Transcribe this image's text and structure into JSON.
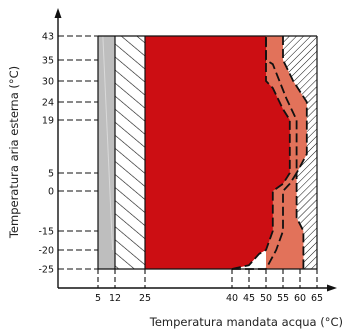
{
  "chart_data": {
    "type": "area",
    "title": "",
    "xlabel": "Temperatura mandata acqua (°C)",
    "ylabel": "Temperatura aria esterna (°C)",
    "x_ticks": [
      5,
      12,
      25,
      40,
      45,
      50,
      55,
      60,
      65
    ],
    "y_ticks": [
      43,
      35,
      30,
      24,
      19,
      5,
      0,
      -15,
      -20,
      -25
    ],
    "x_range": [
      0,
      67
    ],
    "y_range": [
      -29,
      47
    ],
    "grid": false,
    "legend": "none",
    "regions": [
      {
        "fill": "gray",
        "color": "#bebebe",
        "points": [
          [
            5,
            -25
          ],
          [
            12,
            -25
          ],
          [
            12,
            43
          ],
          [
            5,
            43
          ]
        ]
      },
      {
        "fill": "diagonal-hatch",
        "color": "#ffffff",
        "points": [
          [
            12,
            -25
          ],
          [
            25,
            -25
          ],
          [
            25,
            43
          ],
          [
            12,
            43
          ]
        ]
      },
      {
        "fill": "dense-hatch",
        "color": "#ffffff",
        "points": [
          [
            50,
            -25
          ],
          [
            65,
            -25
          ],
          [
            65,
            43
          ],
          [
            50,
            43
          ]
        ]
      },
      {
        "fill": "orange",
        "color": "#e2725a",
        "points": [
          [
            40,
            -25
          ],
          [
            61,
            -25
          ],
          [
            61,
            -15
          ],
          [
            59,
            -10
          ],
          [
            59,
            5
          ],
          [
            62,
            10
          ],
          [
            62,
            24
          ],
          [
            58,
            30
          ],
          [
            55,
            35
          ],
          [
            55,
            43
          ],
          [
            50,
            43
          ],
          [
            50,
            -25
          ]
        ]
      },
      {
        "fill": "red",
        "color": "#cc0e13",
        "points": [
          [
            25,
            -25
          ],
          [
            40,
            -25
          ],
          [
            45,
            -24
          ],
          [
            48,
            -21
          ],
          [
            50,
            -20
          ],
          [
            52,
            -15
          ],
          [
            52,
            0
          ],
          [
            55,
            2
          ],
          [
            57,
            5
          ],
          [
            57,
            19
          ],
          [
            55,
            22
          ],
          [
            52,
            28
          ],
          [
            50,
            30
          ],
          [
            50,
            43
          ],
          [
            25,
            43
          ]
        ]
      }
    ],
    "boundaries": [
      {
        "style": "dashed",
        "points": [
          [
            40,
            -25
          ],
          [
            45,
            -24
          ],
          [
            48,
            -21
          ],
          [
            50,
            -20
          ],
          [
            52,
            -15
          ],
          [
            52,
            0
          ],
          [
            55,
            2
          ],
          [
            57,
            5
          ],
          [
            57,
            19
          ],
          [
            55,
            22
          ],
          [
            52,
            28
          ],
          [
            50,
            30
          ],
          [
            50,
            43
          ]
        ]
      },
      {
        "style": "dashed",
        "points": [
          [
            40,
            -25
          ],
          [
            50,
            -25
          ],
          [
            53,
            -20
          ],
          [
            55,
            -15
          ],
          [
            55,
            0
          ],
          [
            57,
            2
          ],
          [
            59,
            5
          ],
          [
            59,
            19
          ],
          [
            56,
            25
          ],
          [
            52,
            34
          ],
          [
            50,
            35
          ],
          [
            50,
            43
          ]
        ]
      },
      {
        "style": "dashed",
        "points": [
          [
            55,
            43
          ],
          [
            55,
            35
          ],
          [
            58,
            30
          ],
          [
            62,
            24
          ],
          [
            62,
            10
          ],
          [
            59,
            5
          ],
          [
            59,
            -10
          ],
          [
            61,
            -15
          ],
          [
            61,
            -25
          ]
        ]
      }
    ]
  }
}
